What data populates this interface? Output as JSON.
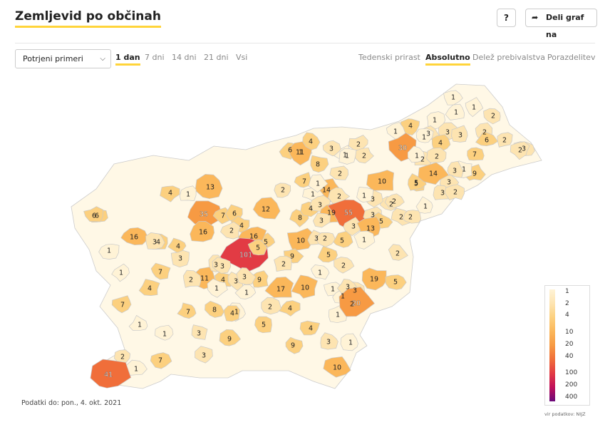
{
  "header": {
    "title": "Zemljevid po občinah",
    "help_label": "?",
    "share_label": "Deli graf na",
    "share_icon": "share-arrow-icon"
  },
  "controls": {
    "metric_select": {
      "value": "Potrjeni primeri"
    },
    "period_tabs": [
      {
        "label": "1 dan",
        "active": true
      },
      {
        "label": "7 dni",
        "active": false
      },
      {
        "label": "14 dni",
        "active": false
      },
      {
        "label": "21 dni",
        "active": false
      },
      {
        "label": "Vsi",
        "active": false
      }
    ],
    "mode_tabs": [
      {
        "label": "Tedenski prirast",
        "active": false
      },
      {
        "label": "Absolutno",
        "active": true
      },
      {
        "label": "Delež prebivalstva",
        "active": false
      },
      {
        "label": "Porazdelitev",
        "active": false
      }
    ]
  },
  "map": {
    "region_values": [
      "1",
      "1",
      "1",
      "2",
      "1",
      "4",
      "3",
      "1",
      "1",
      "3",
      "3",
      "2",
      "30",
      "2",
      "3",
      "4",
      "6",
      "1",
      "2",
      "6",
      "11",
      "4",
      "3",
      "2",
      "8",
      "1",
      "2",
      "1",
      "2",
      "7",
      "1",
      "2",
      "9",
      "1",
      "5",
      "3",
      "13",
      "2",
      "2",
      "14",
      "3",
      "10",
      "5",
      "3",
      "2",
      "2",
      "14",
      "2",
      "2",
      "6",
      "3",
      "4",
      "1",
      "1",
      "1",
      "12",
      "7",
      "8",
      "4",
      "3",
      "1",
      "19",
      "55",
      "3",
      "2",
      "3",
      "5",
      "3",
      "2",
      "35",
      "7",
      "16",
      "6",
      "4",
      "2",
      "16",
      "5",
      "1",
      "4",
      "13",
      "10",
      "3",
      "2",
      "5",
      "1",
      "2",
      "1",
      "6",
      "16",
      "3",
      "4",
      "101",
      "9",
      "2",
      "3",
      "5",
      "1",
      "5",
      "1",
      "1",
      "1",
      "7",
      "2",
      "11",
      "3",
      "4",
      "3",
      "9",
      "17",
      "10",
      "1",
      "2",
      "3",
      "3",
      "19",
      "5",
      "4",
      "1",
      "3",
      "4",
      "3",
      "8",
      "1",
      "7",
      "2",
      "2",
      "4",
      "1",
      "20",
      "4",
      "1",
      "7",
      "1",
      "5",
      "3",
      "9",
      "3",
      "1",
      "9",
      "2",
      "3",
      "10",
      "1",
      "7",
      "41",
      "3",
      "14"
    ],
    "notable": [
      {
        "value": "101",
        "color": "#d40a4f"
      },
      {
        "value": "55",
        "color": "#ea2a47"
      },
      {
        "value": "41",
        "color": "#ee4a3c"
      },
      {
        "value": "35",
        "color": "#ef5a3a"
      },
      {
        "value": "30",
        "color": "#f26c3b"
      }
    ],
    "footer_note": "Podatki do: pon., 4. okt. 2021"
  },
  "legend": {
    "labels": [
      "1",
      "2",
      "4",
      "10",
      "20",
      "40",
      "100",
      "200",
      "400"
    ],
    "colors": [
      "#fff3d6",
      "#fde4b1",
      "#fcd07f",
      "#fbb75a",
      "#f79a43",
      "#f06e3a",
      "#e23b44",
      "#c0105a",
      "#6a0a7a"
    ],
    "source": "vir podatkov: NIJZ"
  }
}
